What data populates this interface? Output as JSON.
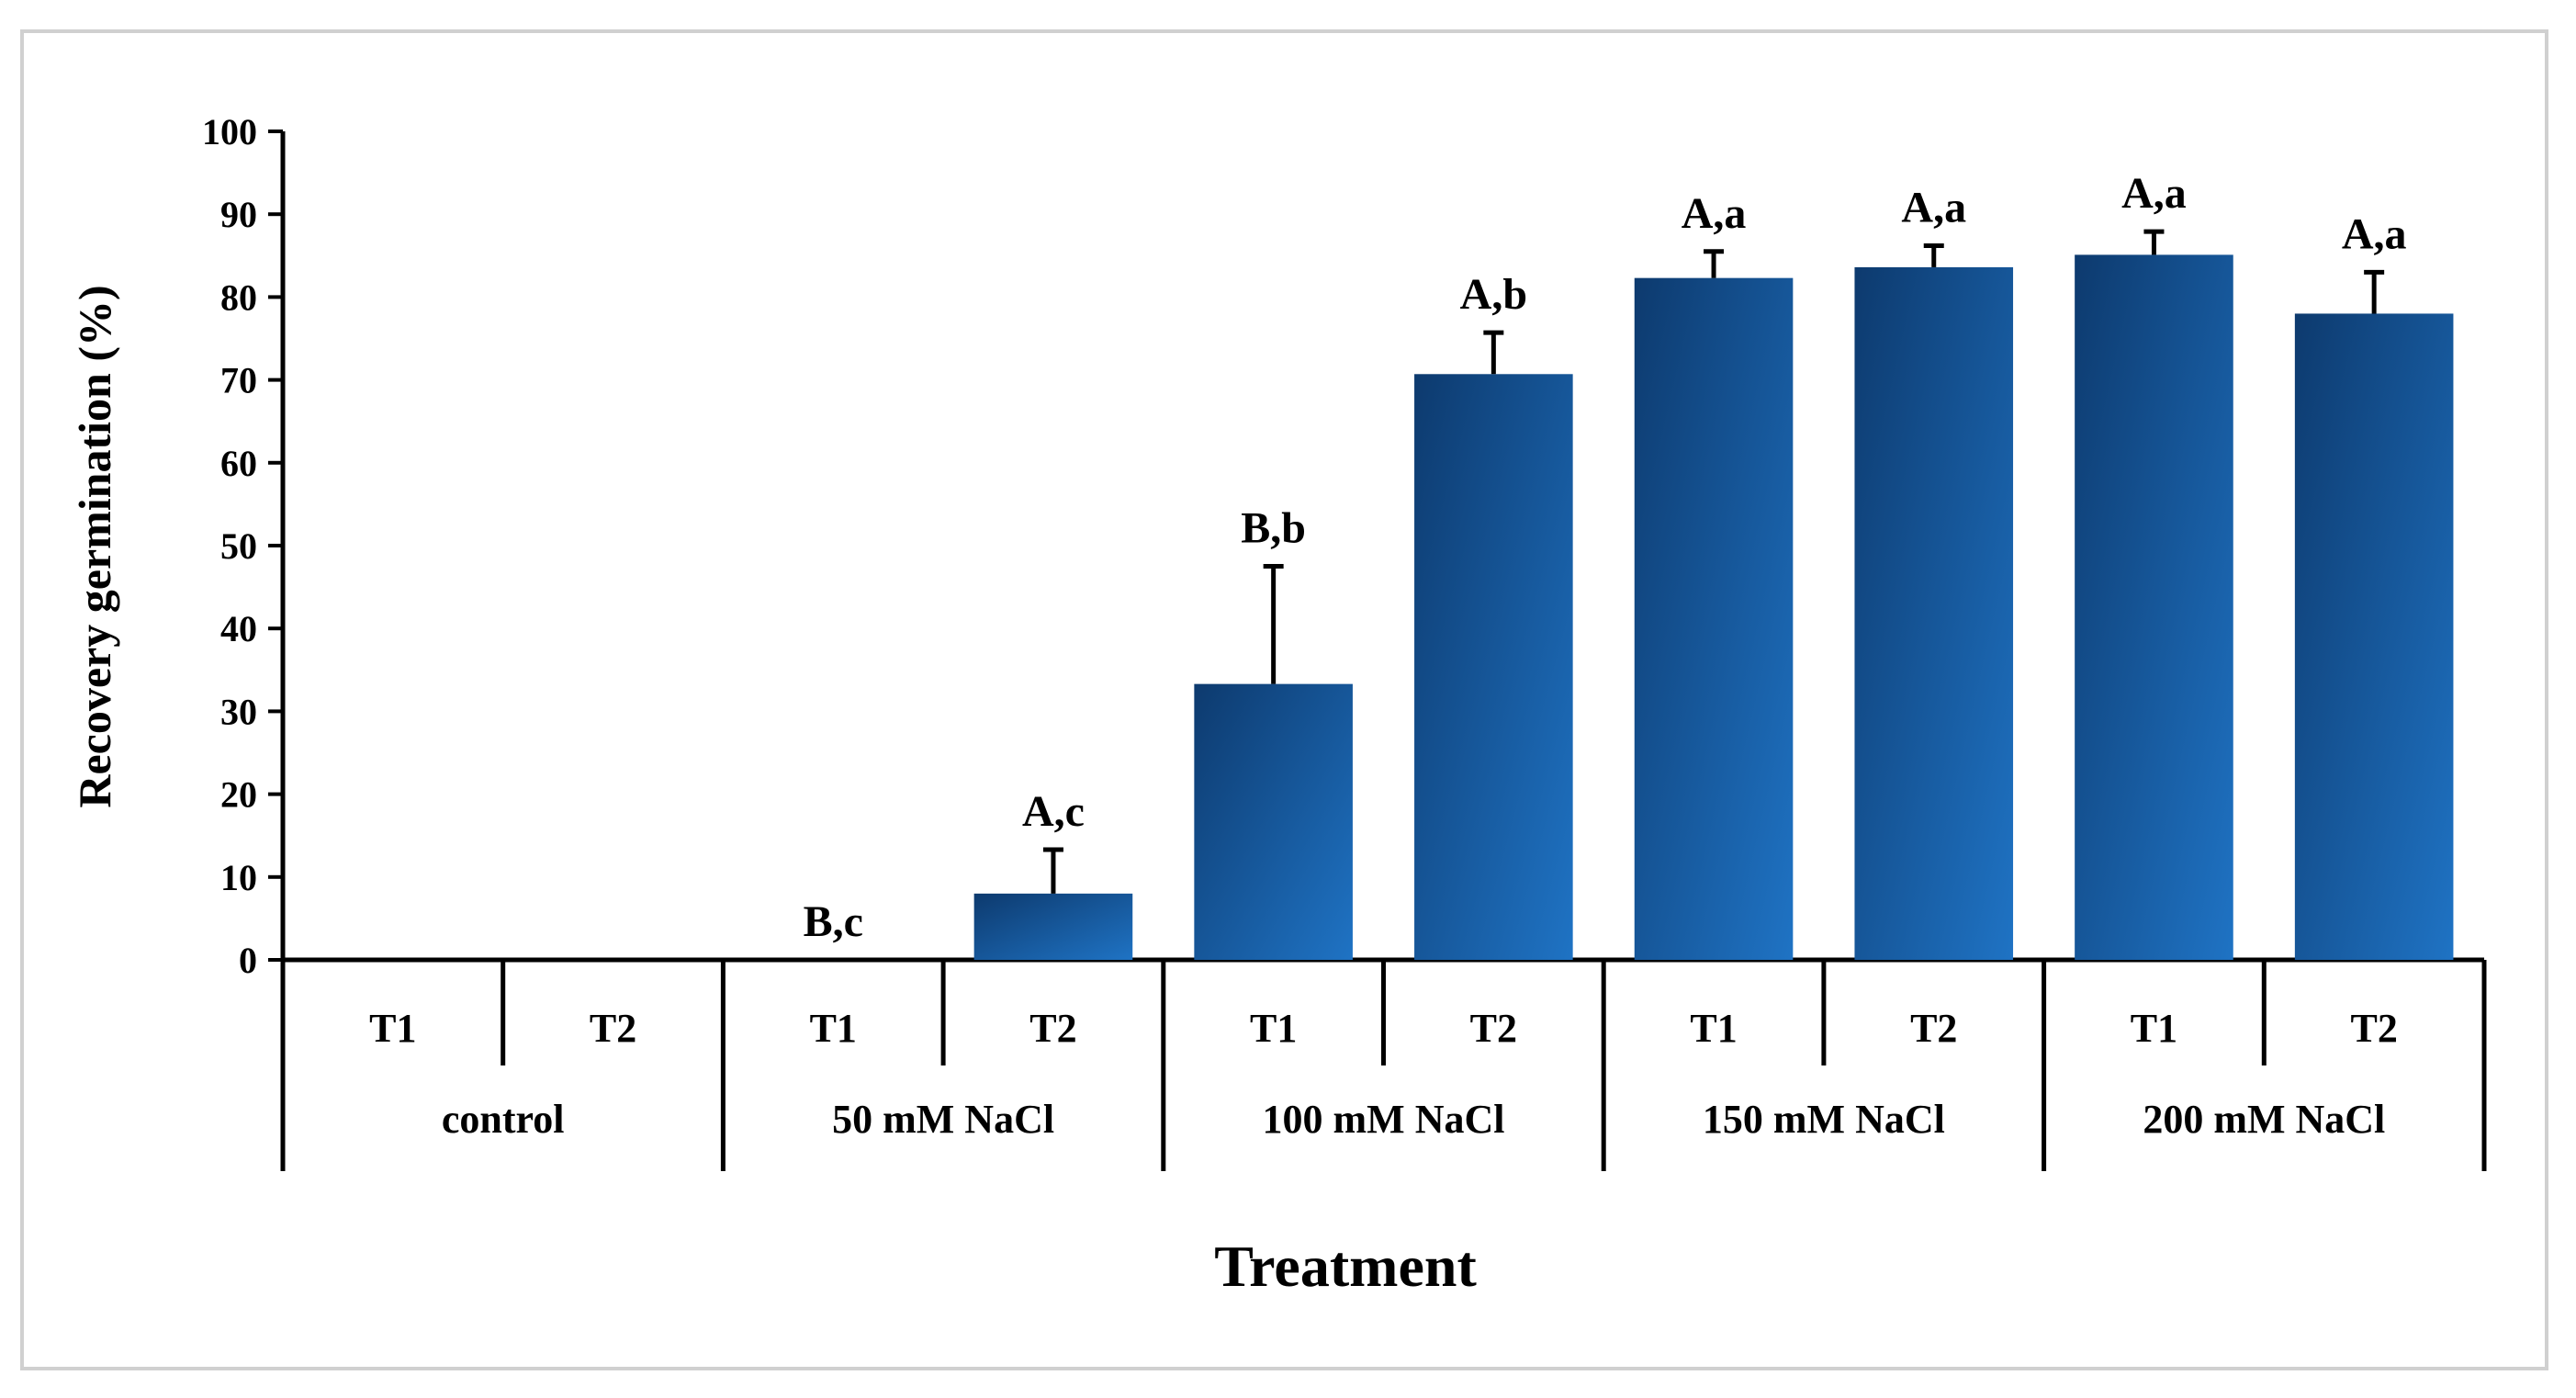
{
  "chart_data": {
    "type": "bar",
    "title": "",
    "ylabel": "Recovery germination (%)",
    "xlabel": "Treatment",
    "ylim": [
      0,
      100
    ],
    "yticks": [
      0,
      10,
      20,
      30,
      40,
      50,
      60,
      70,
      80,
      90,
      100
    ],
    "groups": [
      "control",
      "50 mM NaCl",
      "100 mM NaCl",
      "150 mM NaCl",
      "200 mM NaCl"
    ],
    "subcategories": [
      "T1",
      "T2"
    ],
    "bars": [
      {
        "group": "control",
        "sub": "T1",
        "value": 0,
        "error": 0,
        "label": ""
      },
      {
        "group": "control",
        "sub": "T2",
        "value": 0,
        "error": 0,
        "label": ""
      },
      {
        "group": "50 mM NaCl",
        "sub": "T1",
        "value": 0,
        "error": 0,
        "label": "B,c"
      },
      {
        "group": "50 mM NaCl",
        "sub": "T2",
        "value": 8,
        "error": 5.3,
        "label": "A,c"
      },
      {
        "group": "100 mM NaCl",
        "sub": "T1",
        "value": 33.3,
        "error": 14.2,
        "label": "B,b"
      },
      {
        "group": "100 mM NaCl",
        "sub": "T2",
        "value": 70.7,
        "error": 5,
        "label": "A,b"
      },
      {
        "group": "150 mM NaCl",
        "sub": "T1",
        "value": 82.3,
        "error": 3.2,
        "label": "A,a"
      },
      {
        "group": "150 mM NaCl",
        "sub": "T2",
        "value": 83.6,
        "error": 2.6,
        "label": "A,a"
      },
      {
        "group": "200 mM NaCl",
        "sub": "T1",
        "value": 85.1,
        "error": 2.8,
        "label": "A,a"
      },
      {
        "group": "200 mM NaCl",
        "sub": "T2",
        "value": 78,
        "error": 5,
        "label": "A,a"
      }
    ],
    "colors": {
      "bar_dark": "#0d3a6e",
      "bar_light": "#1f73c4",
      "axis": "#000000"
    }
  }
}
